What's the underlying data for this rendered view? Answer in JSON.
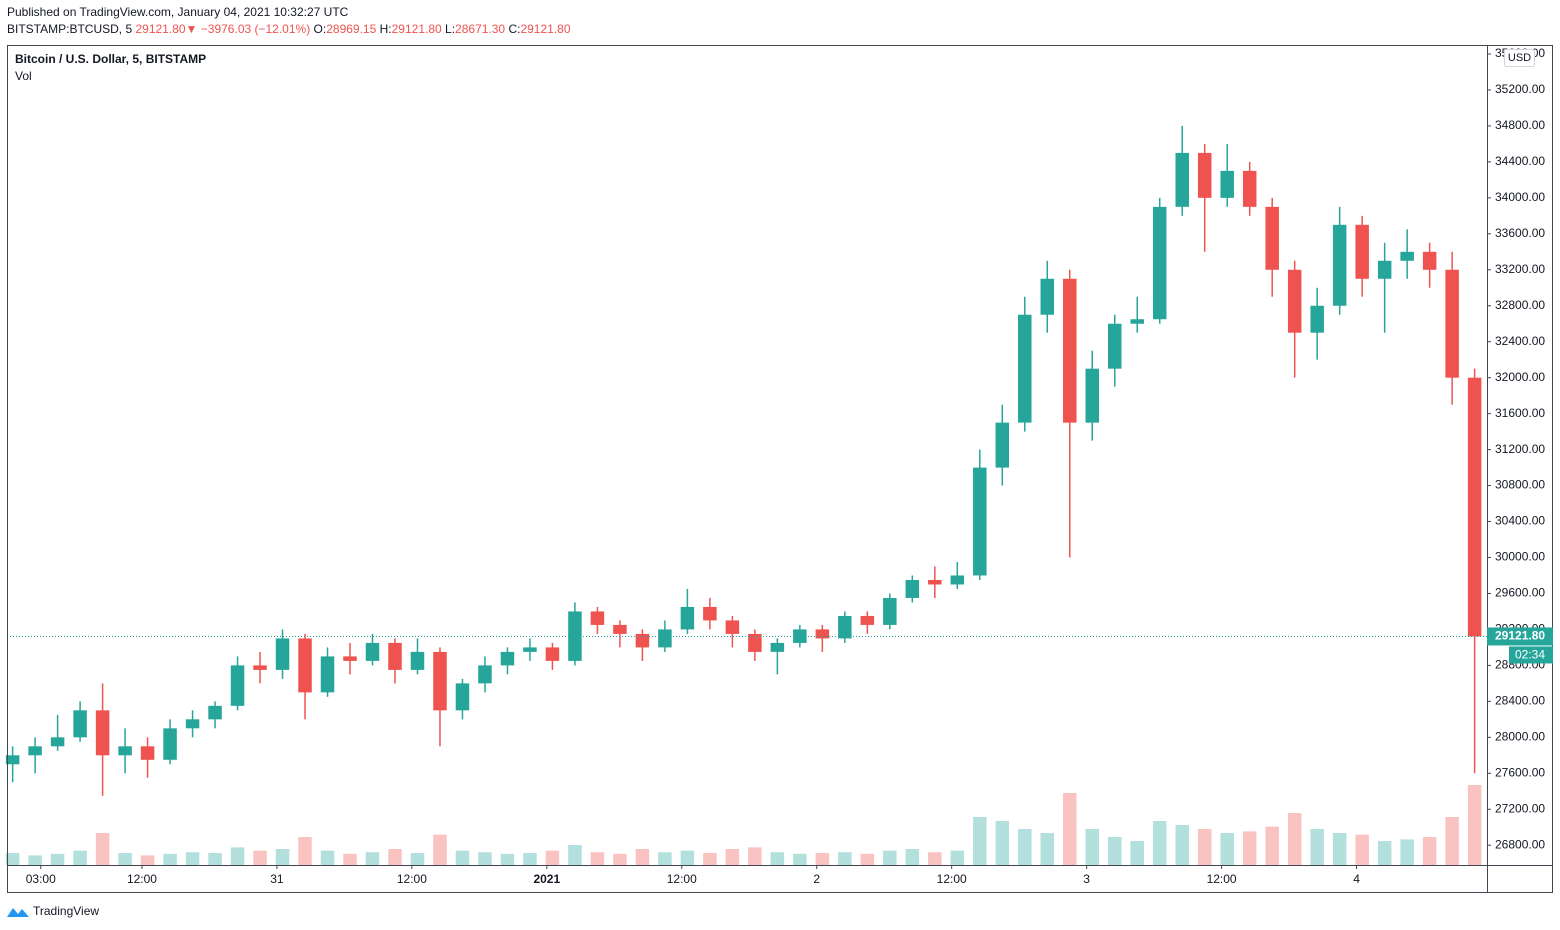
{
  "header": {
    "published": "Published on TradingView.com, January 04, 2021 10:32:27 UTC",
    "symbol": "BITSTAMP:BTCUSD, 5",
    "last": "29121.80",
    "arrow": "▼",
    "change": "−3976.03 (−12.01%)",
    "o_label": "O:",
    "open": "28969.15",
    "h_label": "H:",
    "high": "29121.80",
    "l_label": "L:",
    "low": "28671.30",
    "c_label": "C:",
    "close": "29121.80"
  },
  "chart_data": {
    "type": "candlestick",
    "title": "Bitcoin / U.S. Dollar, 5, BITSTAMP",
    "volume_label": "Vol",
    "currency": "USD",
    "up_color": "#26a69a",
    "down_color": "#ef5350",
    "x": [
      0.5,
      2.5,
      4.5,
      6.5,
      8.5,
      10.5,
      12.5,
      14.5,
      16.5,
      18.5,
      20.5,
      22.5,
      24.5,
      26.5,
      28.5,
      30.5,
      32.5,
      34.5,
      36.5,
      38.5,
      40.5,
      42.5,
      44.5,
      46.5,
      48.5,
      50.5,
      52.5,
      54.5,
      56.5,
      58.5,
      60.5,
      62.5,
      64.5,
      66.5,
      68.5,
      70.5,
      72.5,
      74.5,
      76.5,
      78.5,
      80.5,
      82.5,
      84.5,
      86.5,
      88.5,
      90.5,
      92.5,
      94.5,
      96.5,
      98.5,
      100.5,
      102.5,
      104.5,
      106.5,
      108.5,
      110.5,
      112.5,
      114.5,
      116.5,
      118.5,
      120.5,
      122.5,
      124.5,
      126.5,
      128.5,
      130.5
    ],
    "candles": [
      [
        27700,
        27900,
        27500,
        27800
      ],
      [
        27800,
        28000,
        27600,
        27900
      ],
      [
        27900,
        28250,
        27850,
        28000
      ],
      [
        28000,
        28400,
        27950,
        28300
      ],
      [
        28300,
        28600,
        27350,
        27800
      ],
      [
        27800,
        28100,
        27600,
        27900
      ],
      [
        27900,
        28000,
        27550,
        27750
      ],
      [
        27750,
        28200,
        27700,
        28100
      ],
      [
        28100,
        28300,
        28000,
        28200
      ],
      [
        28200,
        28400,
        28100,
        28350
      ],
      [
        28350,
        28900,
        28300,
        28800
      ],
      [
        28800,
        28950,
        28600,
        28750
      ],
      [
        28750,
        29200,
        28650,
        29100
      ],
      [
        29100,
        29150,
        28200,
        28500
      ],
      [
        28500,
        29000,
        28450,
        28900
      ],
      [
        28900,
        29050,
        28700,
        28850
      ],
      [
        28850,
        29150,
        28800,
        29050
      ],
      [
        29050,
        29100,
        28600,
        28750
      ],
      [
        28750,
        29100,
        28700,
        28950
      ],
      [
        28950,
        29000,
        27900,
        28300
      ],
      [
        28300,
        28650,
        28200,
        28600
      ],
      [
        28600,
        28900,
        28500,
        28800
      ],
      [
        28800,
        29000,
        28700,
        28950
      ],
      [
        28950,
        29100,
        28850,
        29000
      ],
      [
        29000,
        29050,
        28750,
        28850
      ],
      [
        28850,
        29500,
        28800,
        29400
      ],
      [
        29400,
        29450,
        29150,
        29250
      ],
      [
        29250,
        29300,
        29000,
        29150
      ],
      [
        29150,
        29200,
        28850,
        29000
      ],
      [
        29000,
        29300,
        28950,
        29200
      ],
      [
        29200,
        29650,
        29150,
        29450
      ],
      [
        29450,
        29550,
        29200,
        29300
      ],
      [
        29300,
        29350,
        29000,
        29150
      ],
      [
        29150,
        29200,
        28850,
        28950
      ],
      [
        28950,
        29100,
        28700,
        29050
      ],
      [
        29050,
        29250,
        29000,
        29200
      ],
      [
        29200,
        29250,
        28950,
        29100
      ],
      [
        29100,
        29400,
        29050,
        29350
      ],
      [
        29350,
        29400,
        29150,
        29250
      ],
      [
        29250,
        29600,
        29200,
        29550
      ],
      [
        29550,
        29800,
        29500,
        29750
      ],
      [
        29750,
        29900,
        29550,
        29700
      ],
      [
        29700,
        29950,
        29650,
        29800
      ],
      [
        29800,
        31200,
        29750,
        31000
      ],
      [
        31000,
        31700,
        30800,
        31500
      ],
      [
        31500,
        32900,
        31400,
        32700
      ],
      [
        32700,
        33300,
        32500,
        33100
      ],
      [
        33100,
        33200,
        30000,
        31500
      ],
      [
        31500,
        32300,
        31300,
        32100
      ],
      [
        32100,
        32700,
        31900,
        32600
      ],
      [
        32600,
        32900,
        32500,
        32650
      ],
      [
        32650,
        34000,
        32600,
        33900
      ],
      [
        33900,
        34800,
        33800,
        34500
      ],
      [
        34500,
        34600,
        33400,
        34000
      ],
      [
        34000,
        34600,
        33900,
        34300
      ],
      [
        34300,
        34400,
        33800,
        33900
      ],
      [
        33900,
        34000,
        32900,
        33200
      ],
      [
        33200,
        33300,
        32000,
        32500
      ],
      [
        32500,
        33000,
        32200,
        32800
      ],
      [
        32800,
        33900,
        32700,
        33700
      ],
      [
        33700,
        33800,
        32900,
        33100
      ],
      [
        33100,
        33500,
        32500,
        33300
      ],
      [
        33300,
        33650,
        33100,
        33400
      ],
      [
        33400,
        33500,
        33000,
        33200
      ],
      [
        33200,
        33400,
        31700,
        32000
      ],
      [
        32000,
        32100,
        27600,
        29121.8
      ]
    ],
    "volume": [
      15,
      12,
      14,
      18,
      40,
      15,
      12,
      14,
      16,
      15,
      22,
      18,
      20,
      35,
      18,
      14,
      16,
      20,
      15,
      38,
      18,
      16,
      14,
      15,
      18,
      25,
      16,
      14,
      20,
      16,
      18,
      15,
      20,
      22,
      16,
      14,
      15,
      16,
      14,
      18,
      20,
      16,
      18,
      60,
      55,
      45,
      40,
      90,
      45,
      35,
      30,
      55,
      50,
      45,
      40,
      42,
      48,
      65,
      45,
      40,
      38,
      30,
      32,
      35,
      60,
      100
    ],
    "xlim": [
      0,
      131.6
    ],
    "xticks": [
      {
        "value": 3,
        "label": "03:00"
      },
      {
        "value": 12,
        "label": "12:00"
      },
      {
        "value": 24,
        "label": "31"
      },
      {
        "value": 36,
        "label": "12:00"
      },
      {
        "value": 48,
        "label": "2021"
      },
      {
        "value": 60,
        "label": "12:00"
      },
      {
        "value": 72,
        "label": "2"
      },
      {
        "value": 84,
        "label": "12:00"
      },
      {
        "value": 96,
        "label": "3"
      },
      {
        "value": 108,
        "label": "12:00"
      },
      {
        "value": 120,
        "label": "4"
      }
    ],
    "ylim": [
      26580,
      35700
    ],
    "yticks": [
      {
        "value": 26800,
        "label": "26800.00"
      },
      {
        "value": 27200,
        "label": "27200.00"
      },
      {
        "value": 27600,
        "label": "27600.00"
      },
      {
        "value": 28000,
        "label": "28000.00"
      },
      {
        "value": 28400,
        "label": "28400.00"
      },
      {
        "value": 28800,
        "label": "28800.00"
      },
      {
        "value": 29200,
        "label": "29200.00"
      },
      {
        "value": 29600,
        "label": "29600.00"
      },
      {
        "value": 30000,
        "label": "30000.00"
      },
      {
        "value": 30400,
        "label": "30400.00"
      },
      {
        "value": 30800,
        "label": "30800.00"
      },
      {
        "value": 31200,
        "label": "31200.00"
      },
      {
        "value": 31600,
        "label": "31600.00"
      },
      {
        "value": 32000,
        "label": "32000.00"
      },
      {
        "value": 32400,
        "label": "32400.00"
      },
      {
        "value": 32800,
        "label": "32800.00"
      },
      {
        "value": 33200,
        "label": "33200.00"
      },
      {
        "value": 33600,
        "label": "33600.00"
      },
      {
        "value": 34000,
        "label": "34000.00"
      },
      {
        "value": 34400,
        "label": "34400.00"
      },
      {
        "value": 34800,
        "label": "34800.00"
      },
      {
        "value": 35200,
        "label": "35200.00"
      },
      {
        "value": 35600,
        "label": "35600.00"
      }
    ],
    "grid": true,
    "price_line": {
      "value": 29121.8,
      "label": "29121.80"
    },
    "countdown": "02:34"
  },
  "brand": "TradingView"
}
